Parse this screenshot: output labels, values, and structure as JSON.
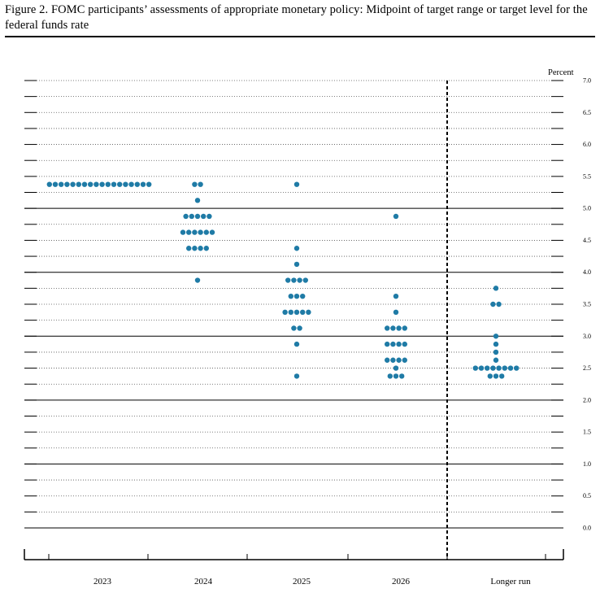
{
  "title": "Figure 2.  FOMC participants’ assessments of appropriate monetary policy:  Midpoint of target range or target level for the federal funds rate",
  "colors": {
    "dot": "#1f7ba6",
    "grid": "#000000"
  },
  "chart_data": {
    "type": "scatter",
    "title": "Figure 2.  FOMC participants’ assessments of appropriate monetary policy:  Midpoint of target range or target level for the federal funds rate",
    "ylabel": "Percent",
    "ylim": [
      0,
      7
    ],
    "y_ticks": [
      "0.0",
      "0.5",
      "1.0",
      "1.5",
      "2.0",
      "2.5",
      "3.0",
      "3.5",
      "4.0",
      "4.5",
      "5.0",
      "5.5",
      "6.0",
      "6.5",
      "7.0"
    ],
    "grid": true,
    "categories": [
      "2023",
      "2024",
      "2025",
      "2026",
      "Longer run"
    ],
    "series": [
      {
        "category": "2023",
        "points": [
          {
            "y": 5.375,
            "count": 18
          }
        ]
      },
      {
        "category": "2024",
        "points": [
          {
            "y": 5.375,
            "count": 2
          },
          {
            "y": 5.125,
            "count": 1
          },
          {
            "y": 4.875,
            "count": 5
          },
          {
            "y": 4.625,
            "count": 6
          },
          {
            "y": 4.375,
            "count": 4
          },
          {
            "y": 3.875,
            "count": 1
          }
        ]
      },
      {
        "category": "2025",
        "points": [
          {
            "y": 5.375,
            "count": 1
          },
          {
            "y": 4.375,
            "count": 1
          },
          {
            "y": 4.125,
            "count": 1
          },
          {
            "y": 3.875,
            "count": 4
          },
          {
            "y": 3.625,
            "count": 3
          },
          {
            "y": 3.375,
            "count": 5
          },
          {
            "y": 3.125,
            "count": 2
          },
          {
            "y": 2.875,
            "count": 1
          },
          {
            "y": 2.375,
            "count": 1
          }
        ]
      },
      {
        "category": "2026",
        "points": [
          {
            "y": 4.875,
            "count": 1
          },
          {
            "y": 3.625,
            "count": 1
          },
          {
            "y": 3.375,
            "count": 1
          },
          {
            "y": 3.125,
            "count": 4
          },
          {
            "y": 2.875,
            "count": 4
          },
          {
            "y": 2.625,
            "count": 4
          },
          {
            "y": 2.5,
            "count": 1
          },
          {
            "y": 2.375,
            "count": 3
          }
        ]
      },
      {
        "category": "Longer run",
        "points": [
          {
            "y": 3.75,
            "count": 1
          },
          {
            "y": 3.5,
            "count": 2
          },
          {
            "y": 3.0,
            "count": 1
          },
          {
            "y": 2.875,
            "count": 1
          },
          {
            "y": 2.75,
            "count": 1
          },
          {
            "y": 2.625,
            "count": 1
          },
          {
            "y": 2.5,
            "count": 8
          },
          {
            "y": 2.375,
            "count": 3
          }
        ]
      }
    ]
  }
}
